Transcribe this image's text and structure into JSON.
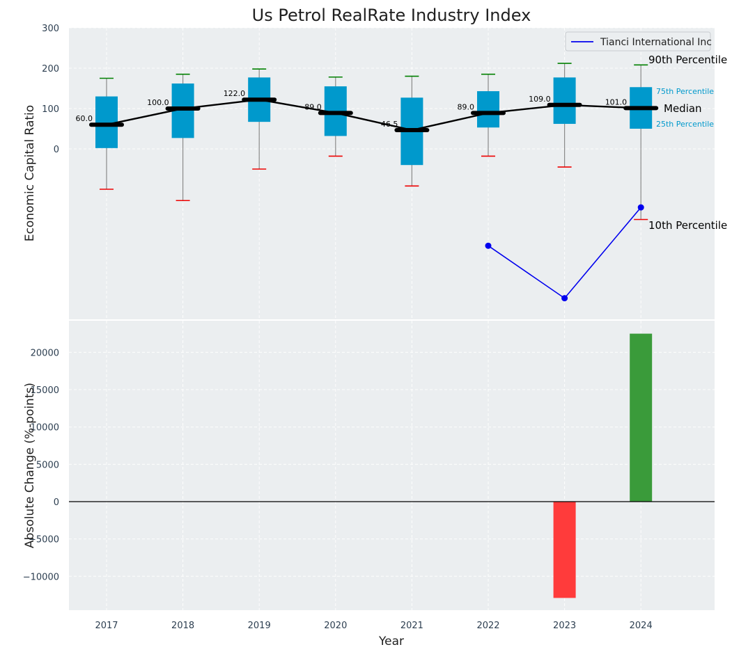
{
  "chart_data": [
    {
      "type": "box",
      "title": "Us Petrol RealRate Industry Index",
      "ylabel": "Economic Capital Ratio",
      "ylim": [
        -410,
        300
      ],
      "yticks": [
        0,
        100,
        200,
        300
      ],
      "categories": [
        "2017",
        "2018",
        "2019",
        "2020",
        "2021",
        "2022",
        "2023",
        "2024"
      ],
      "boxes": [
        {
          "year": "2017",
          "p10": -100,
          "p25": 2,
          "median": 60,
          "p75": 130,
          "p90": 175,
          "median_label": "60.0"
        },
        {
          "year": "2018",
          "p10": -128,
          "p25": 27,
          "median": 100,
          "p75": 162,
          "p90": 185,
          "median_label": "100.0"
        },
        {
          "year": "2019",
          "p10": -50,
          "p25": 67,
          "median": 122,
          "p75": 177,
          "p90": 198,
          "median_label": "122.0"
        },
        {
          "year": "2020",
          "p10": -18,
          "p25": 32,
          "median": 89,
          "p75": 155,
          "p90": 178,
          "median_label": "89.0"
        },
        {
          "year": "2021",
          "p10": -92,
          "p25": -40,
          "median": 46.5,
          "p75": 127,
          "p90": 180,
          "median_label": "46.5"
        },
        {
          "year": "2022",
          "p10": -18,
          "p25": 53,
          "median": 89,
          "p75": 143,
          "p90": 185,
          "median_label": "89.0"
        },
        {
          "year": "2023",
          "p10": -45,
          "p25": 62,
          "median": 109,
          "p75": 177,
          "p90": 212,
          "median_label": "109.0"
        },
        {
          "year": "2024",
          "p10": -175,
          "p25": 50,
          "median": 101,
          "p75": 153,
          "p90": 208,
          "median_label": "101.0"
        }
      ],
      "company_series": {
        "name": "Tianci International Inc",
        "color": "#0000ee",
        "x": [
          "2022",
          "2023",
          "2024"
        ],
        "values": [
          -240,
          -370,
          -145
        ]
      },
      "annotations": {
        "p90": "90th Percentile",
        "p75": "75th Percentile",
        "median": "Median",
        "p25": "25th Percentile",
        "p10": "10th Percentile"
      },
      "colors": {
        "box": "#0099cc",
        "median_line": "#000000",
        "whisker_top": "#008000",
        "whisker_bottom": "#ee0000",
        "background": "#ebeef0"
      },
      "legend": "top-right"
    },
    {
      "type": "bar",
      "ylabel": "Absolute Change (%-points)",
      "xlabel": "Year",
      "ylim": [
        -14500,
        24500
      ],
      "yticks": [
        -10000,
        -5000,
        0,
        5000,
        10000,
        15000,
        20000
      ],
      "ytick_labels": [
        "−10000",
        "−5000",
        "0",
        "5000",
        "10000",
        "15000",
        "20000"
      ],
      "bars": [
        {
          "year": "2023",
          "value": -12900,
          "color": "#ff3b3b"
        },
        {
          "year": "2024",
          "value": 22500,
          "color": "#3a9b3a"
        }
      ]
    }
  ]
}
